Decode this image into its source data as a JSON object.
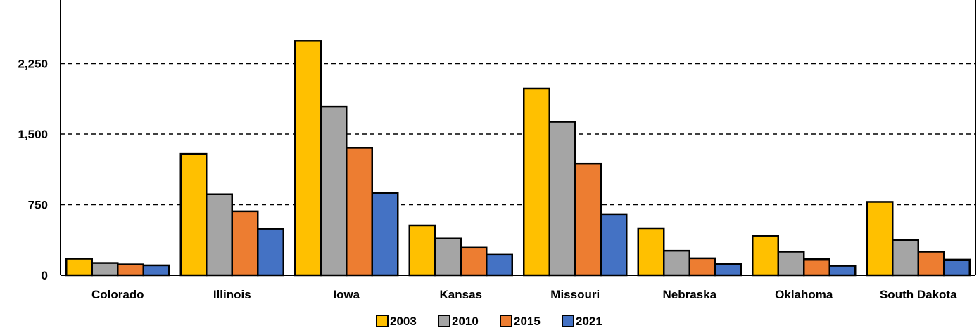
{
  "chart_data": {
    "type": "bar",
    "categories": [
      "Colorado",
      "Illinois",
      "Iowa",
      "Kansas",
      "Missouri",
      "Nebraska",
      "Oklahoma",
      "South Dakota"
    ],
    "series": [
      {
        "name": "2003",
        "color": "#FFC000",
        "values": [
          175,
          1290,
          2490,
          530,
          1985,
          500,
          420,
          780
        ]
      },
      {
        "name": "2010",
        "color": "#A5A5A5",
        "values": [
          130,
          860,
          1790,
          390,
          1630,
          260,
          250,
          375
        ]
      },
      {
        "name": "2015",
        "color": "#ED7D31",
        "values": [
          115,
          680,
          1355,
          300,
          1185,
          180,
          170,
          250
        ]
      },
      {
        "name": "2021",
        "color": "#4472C4",
        "values": [
          105,
          495,
          875,
          225,
          650,
          120,
          100,
          165
        ]
      }
    ],
    "yticks": [
      {
        "value": 0,
        "label": "0"
      },
      {
        "value": 750,
        "label": "750"
      },
      {
        "value": 1500,
        "label": "1,500"
      },
      {
        "value": 2250,
        "label": "2,250"
      }
    ],
    "ylim": [
      0,
      2925
    ],
    "grid": true,
    "legend_position": "bottom",
    "title": "",
    "xlabel": "",
    "ylabel": ""
  }
}
